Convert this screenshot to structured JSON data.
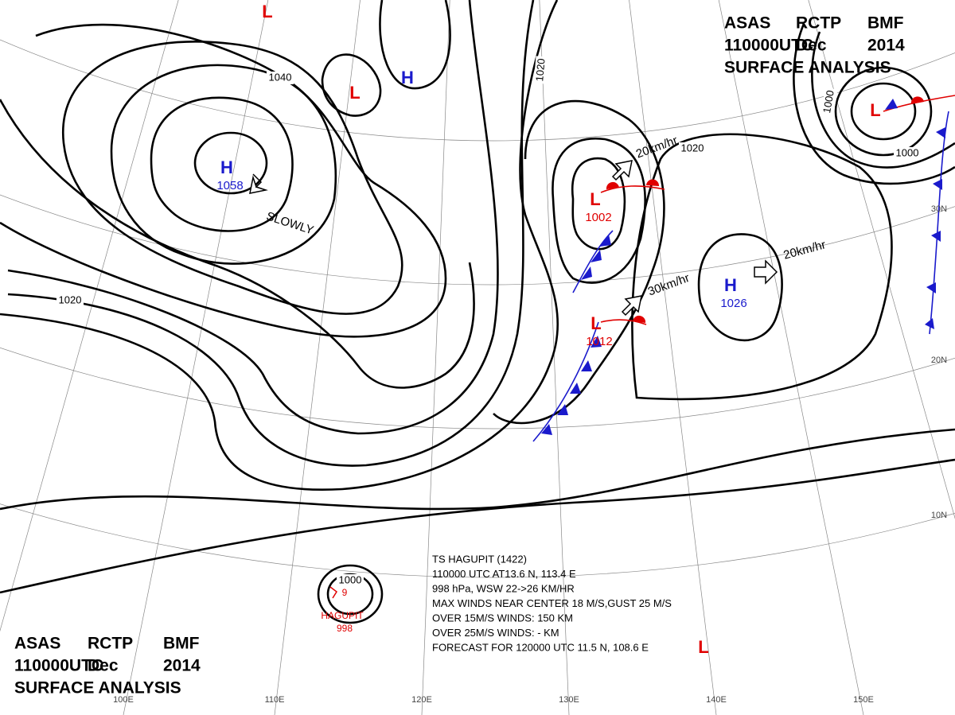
{
  "header_top": [
    [
      "ASAS",
      "RCTP",
      "BMF"
    ],
    [
      "110000UTC",
      "Dec",
      "2014"
    ],
    [
      "SURFACE ANALYSIS"
    ]
  ],
  "header_bottom": [
    [
      "ASAS",
      "RCTP",
      "BMF"
    ],
    [
      "110000UTC",
      "Dec",
      "2014"
    ],
    [
      "SURFACE ANALYSIS"
    ]
  ],
  "isobar_labels": [
    "1040",
    "1020",
    "1020",
    "1020",
    "1000",
    "1000",
    "1000"
  ],
  "systems": [
    {
      "type": "H",
      "value": "1058",
      "color": "#1a1acc"
    },
    {
      "type": "H",
      "color": "#1a1acc"
    },
    {
      "type": "L",
      "color": "#e00000"
    },
    {
      "type": "L",
      "color": "#e00000"
    },
    {
      "type": "L",
      "value": "1002",
      "color": "#e00000"
    },
    {
      "type": "L",
      "value": "1012",
      "color": "#e00000"
    },
    {
      "type": "H",
      "value": "1026",
      "color": "#1a1acc"
    },
    {
      "type": "L",
      "color": "#e00000"
    },
    {
      "type": "L",
      "color": "#e00000"
    }
  ],
  "motion_labels": [
    "SLOWLY",
    "20km/hr",
    "20km/hr",
    "30km/hr"
  ],
  "typhoon": {
    "name": "HAGUPIT",
    "pressure": "998",
    "center": "9"
  },
  "typhoon_info": [
    "TS  HAGUPIT  (1422)",
    "110000 UTC  AT13.6 N, 113.4 E",
    "998 hPa, WSW  22->26 KM/HR",
    "MAX WINDS NEAR CENTER 18 M/S,GUST 25 M/S",
    "OVER 15M/S WINDS: 150 KM",
    "OVER 25M/S WINDS: - KM",
    "FORECAST FOR 120000 UTC 11.5 N, 108.6 E"
  ],
  "longitude_labels": [
    "100E",
    "110E",
    "120E",
    "130E",
    "140E",
    "150E"
  ],
  "latitude_labels": [
    "30N",
    "20N",
    "10N"
  ]
}
